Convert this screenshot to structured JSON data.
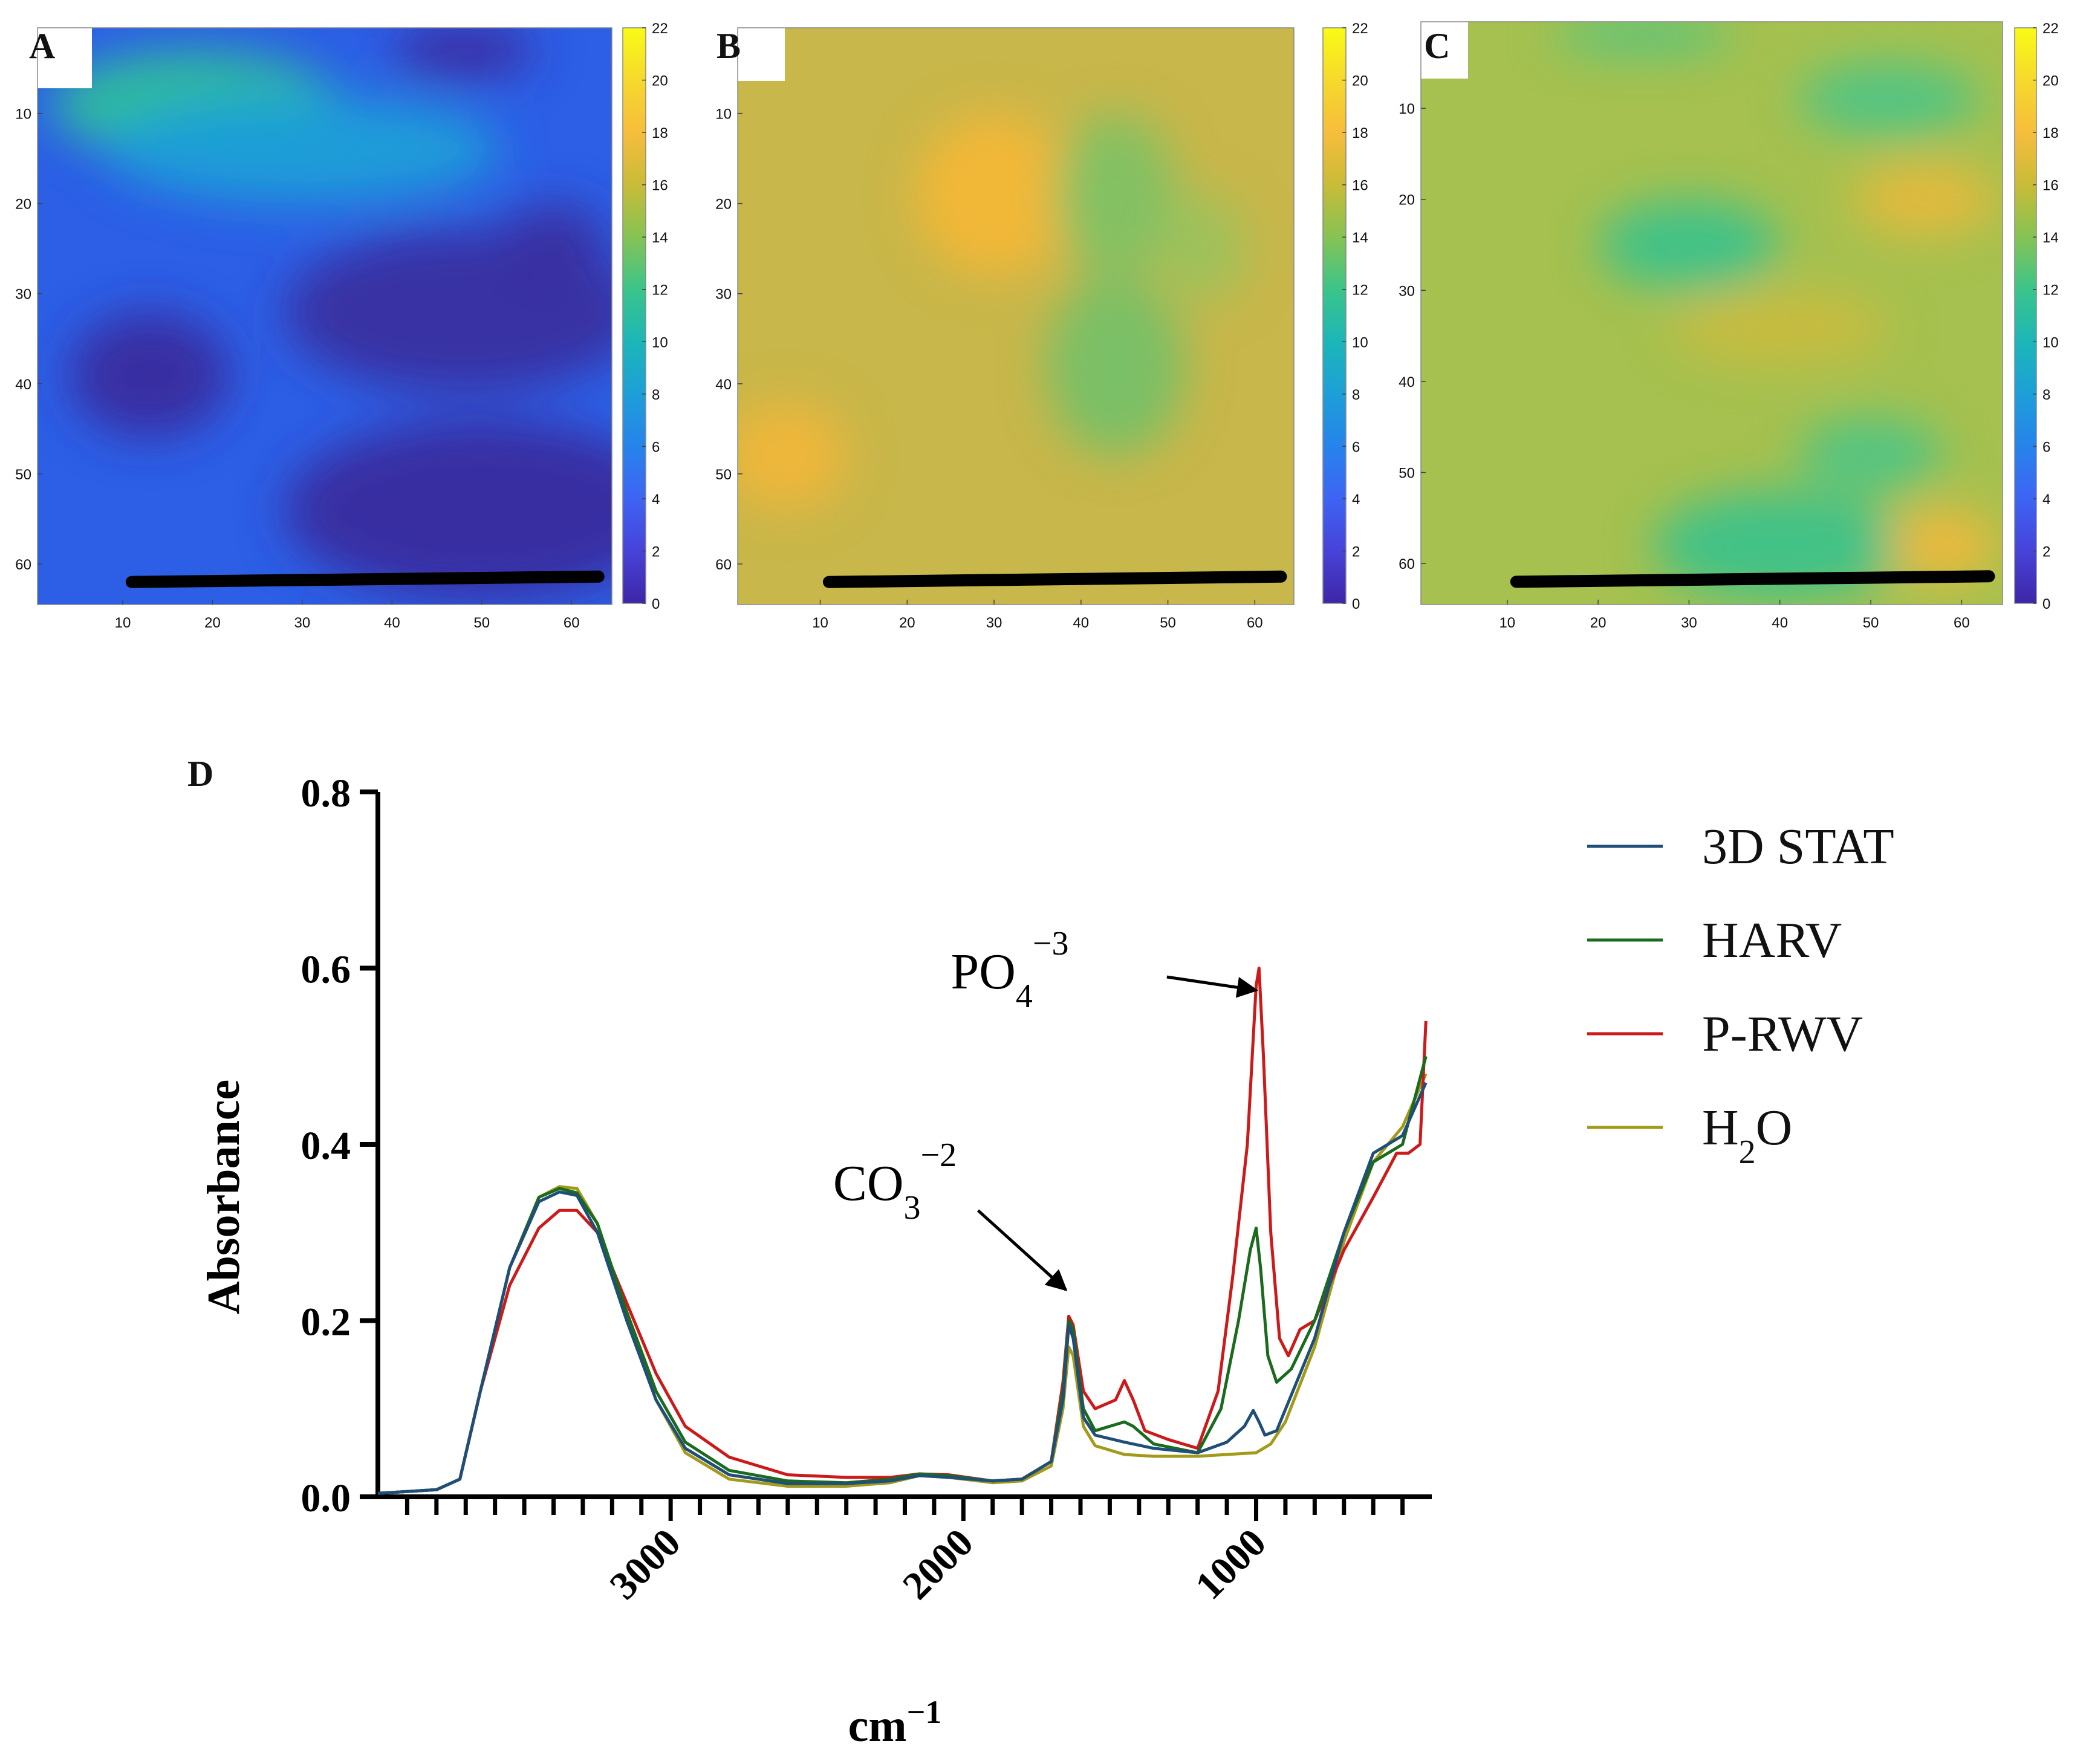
{
  "colorbar": {
    "ticks": [
      0,
      2,
      4,
      6,
      8,
      10,
      12,
      14,
      16,
      18,
      20,
      22
    ],
    "colors": [
      "#3e26a8",
      "#4743d9",
      "#3e64f4",
      "#2783ec",
      "#1d9fd8",
      "#1cb6b8",
      "#3bc48a",
      "#86c354",
      "#c9bb38",
      "#f7bd3c",
      "#f6d92d",
      "#f9fb15"
    ]
  },
  "heatmaps": [
    {
      "id": "A",
      "letter": "A",
      "base_color": "#2c5fe6",
      "x_ticks": [
        10,
        20,
        30,
        40,
        50,
        60
      ],
      "y_ticks": [
        10,
        20,
        30,
        40,
        50,
        60
      ],
      "blobs": [
        {
          "cx": 18,
          "cy": 9,
          "rx": 16,
          "ry": 6,
          "color": "#2ebf9a"
        },
        {
          "cx": 30,
          "cy": 14,
          "rx": 22,
          "ry": 6,
          "color": "#1d9fd8"
        },
        {
          "cx": 48,
          "cy": 3,
          "rx": 8,
          "ry": 3,
          "color": "#3b2b9f"
        },
        {
          "cx": 48,
          "cy": 32,
          "rx": 20,
          "ry": 9,
          "color": "#3a2fa0"
        },
        {
          "cx": 13,
          "cy": 39,
          "rx": 9,
          "ry": 7,
          "color": "#3a2a9e"
        },
        {
          "cx": 50,
          "cy": 54,
          "rx": 22,
          "ry": 10,
          "color": "#3a2a9e"
        },
        {
          "cx": 58,
          "cy": 24,
          "rx": 6,
          "ry": 4,
          "color": "#3a2fa0"
        }
      ],
      "scale_line": {
        "x1": 11,
        "y1": 62,
        "x2": 63,
        "y2": 61.4
      }
    },
    {
      "id": "B",
      "letter": "B",
      "base_color": "#c8b74a",
      "x_ticks": [
        10,
        20,
        30,
        40,
        50,
        60
      ],
      "y_ticks": [
        10,
        20,
        30,
        40,
        50,
        60
      ],
      "blobs": [
        {
          "cx": 30,
          "cy": 19,
          "rx": 9,
          "ry": 9,
          "color": "#f3b737"
        },
        {
          "cx": 6,
          "cy": 48,
          "rx": 7,
          "ry": 6,
          "color": "#f0b63a"
        },
        {
          "cx": 44,
          "cy": 19,
          "rx": 7,
          "ry": 9,
          "color": "#7fc164"
        },
        {
          "cx": 44,
          "cy": 38,
          "rx": 8,
          "ry": 10,
          "color": "#76c067"
        },
        {
          "cx": 54,
          "cy": 25,
          "rx": 5,
          "ry": 6,
          "color": "#9cc25c"
        }
      ],
      "scale_line": {
        "x1": 11,
        "y1": 62,
        "x2": 63,
        "y2": 61.4
      }
    },
    {
      "id": "C",
      "letter": "C",
      "base_color": "#a6c14f",
      "x_ticks": [
        10,
        20,
        30,
        40,
        50,
        60
      ],
      "y_ticks": [
        10,
        20,
        30,
        40,
        50,
        60
      ],
      "blobs": [
        {
          "cx": 30,
          "cy": 25,
          "rx": 10,
          "ry": 5,
          "color": "#3cc28a"
        },
        {
          "cx": 40,
          "cy": 34,
          "rx": 12,
          "ry": 4,
          "color": "#c9bc3f"
        },
        {
          "cx": 56,
          "cy": 20,
          "rx": 8,
          "ry": 4,
          "color": "#e6b93b"
        },
        {
          "cx": 52,
          "cy": 9,
          "rx": 10,
          "ry": 4,
          "color": "#4ec485"
        },
        {
          "cx": 40,
          "cy": 58,
          "rx": 14,
          "ry": 6,
          "color": "#3cc28a"
        },
        {
          "cx": 50,
          "cy": 48,
          "rx": 8,
          "ry": 4,
          "color": "#4ec485"
        },
        {
          "cx": 58,
          "cy": 58,
          "rx": 6,
          "ry": 4,
          "color": "#efb83b"
        },
        {
          "cx": 25,
          "cy": 2,
          "rx": 10,
          "ry": 2,
          "color": "#4ec485"
        }
      ],
      "scale_line": {
        "x1": 11,
        "y1": 62,
        "x2": 63,
        "y2": 61.4
      }
    }
  ],
  "chart_data": {
    "type": "line",
    "panel_letter": "D",
    "xlabel": "cm",
    "xlabel_sup": "−1",
    "ylabel": "Absorbance",
    "xlim": [
      4000,
      400
    ],
    "ylim": [
      0,
      0.8
    ],
    "x_ticks": [
      3000,
      2000,
      1000
    ],
    "y_ticks": [
      0.0,
      0.2,
      0.4,
      0.6,
      0.8
    ],
    "y_tick_labels": [
      "0.0",
      "0.2",
      "0.4",
      "0.6",
      "0.8"
    ],
    "legend_position": "right",
    "series": [
      {
        "name": "3D STAT",
        "color": "#1f4e79",
        "points": [
          [
            4000,
            0.004
          ],
          [
            3800,
            0.008
          ],
          [
            3720,
            0.02
          ],
          [
            3650,
            0.12
          ],
          [
            3550,
            0.26
          ],
          [
            3450,
            0.335
          ],
          [
            3380,
            0.346
          ],
          [
            3320,
            0.342
          ],
          [
            3250,
            0.3
          ],
          [
            3150,
            0.2
          ],
          [
            3050,
            0.11
          ],
          [
            2950,
            0.055
          ],
          [
            2800,
            0.025
          ],
          [
            2600,
            0.015
          ],
          [
            2400,
            0.015
          ],
          [
            2250,
            0.018
          ],
          [
            2150,
            0.024
          ],
          [
            2050,
            0.022
          ],
          [
            1900,
            0.018
          ],
          [
            1800,
            0.02
          ],
          [
            1700,
            0.04
          ],
          [
            1660,
            0.11
          ],
          [
            1640,
            0.195
          ],
          [
            1625,
            0.18
          ],
          [
            1590,
            0.09
          ],
          [
            1550,
            0.07
          ],
          [
            1450,
            0.062
          ],
          [
            1350,
            0.055
          ],
          [
            1200,
            0.05
          ],
          [
            1100,
            0.062
          ],
          [
            1040,
            0.08
          ],
          [
            1010,
            0.098
          ],
          [
            990,
            0.085
          ],
          [
            970,
            0.07
          ],
          [
            930,
            0.075
          ],
          [
            800,
            0.18
          ],
          [
            700,
            0.3
          ],
          [
            600,
            0.39
          ],
          [
            500,
            0.41
          ],
          [
            420,
            0.47
          ]
        ]
      },
      {
        "name": "HARV",
        "color": "#1a6b1e",
        "points": [
          [
            4000,
            0.004
          ],
          [
            3800,
            0.008
          ],
          [
            3720,
            0.02
          ],
          [
            3650,
            0.12
          ],
          [
            3550,
            0.26
          ],
          [
            3450,
            0.34
          ],
          [
            3380,
            0.35
          ],
          [
            3320,
            0.345
          ],
          [
            3250,
            0.31
          ],
          [
            3150,
            0.21
          ],
          [
            3050,
            0.12
          ],
          [
            2950,
            0.062
          ],
          [
            2800,
            0.03
          ],
          [
            2600,
            0.018
          ],
          [
            2400,
            0.016
          ],
          [
            2250,
            0.02
          ],
          [
            2150,
            0.026
          ],
          [
            2050,
            0.024
          ],
          [
            1900,
            0.018
          ],
          [
            1800,
            0.02
          ],
          [
            1700,
            0.04
          ],
          [
            1660,
            0.12
          ],
          [
            1640,
            0.2
          ],
          [
            1625,
            0.19
          ],
          [
            1590,
            0.1
          ],
          [
            1550,
            0.075
          ],
          [
            1450,
            0.085
          ],
          [
            1420,
            0.08
          ],
          [
            1350,
            0.06
          ],
          [
            1200,
            0.05
          ],
          [
            1120,
            0.1
          ],
          [
            1060,
            0.2
          ],
          [
            1020,
            0.28
          ],
          [
            1000,
            0.305
          ],
          [
            985,
            0.26
          ],
          [
            960,
            0.16
          ],
          [
            930,
            0.13
          ],
          [
            880,
            0.145
          ],
          [
            800,
            0.2
          ],
          [
            700,
            0.3
          ],
          [
            600,
            0.38
          ],
          [
            500,
            0.4
          ],
          [
            420,
            0.5
          ]
        ]
      },
      {
        "name": "P-RWV",
        "color": "#cc1a1a",
        "points": [
          [
            4000,
            0.004
          ],
          [
            3800,
            0.008
          ],
          [
            3720,
            0.02
          ],
          [
            3650,
            0.12
          ],
          [
            3550,
            0.24
          ],
          [
            3450,
            0.305
          ],
          [
            3380,
            0.325
          ],
          [
            3320,
            0.325
          ],
          [
            3250,
            0.3
          ],
          [
            3150,
            0.22
          ],
          [
            3050,
            0.14
          ],
          [
            2950,
            0.08
          ],
          [
            2800,
            0.045
          ],
          [
            2600,
            0.025
          ],
          [
            2400,
            0.022
          ],
          [
            2250,
            0.022
          ],
          [
            2150,
            0.026
          ],
          [
            2050,
            0.025
          ],
          [
            1900,
            0.018
          ],
          [
            1800,
            0.02
          ],
          [
            1700,
            0.04
          ],
          [
            1660,
            0.13
          ],
          [
            1640,
            0.205
          ],
          [
            1625,
            0.195
          ],
          [
            1590,
            0.12
          ],
          [
            1550,
            0.1
          ],
          [
            1480,
            0.11
          ],
          [
            1450,
            0.132
          ],
          [
            1420,
            0.11
          ],
          [
            1380,
            0.075
          ],
          [
            1300,
            0.065
          ],
          [
            1200,
            0.055
          ],
          [
            1130,
            0.12
          ],
          [
            1080,
            0.25
          ],
          [
            1030,
            0.4
          ],
          [
            1000,
            0.58
          ],
          [
            990,
            0.6
          ],
          [
            975,
            0.5
          ],
          [
            950,
            0.3
          ],
          [
            920,
            0.18
          ],
          [
            890,
            0.16
          ],
          [
            850,
            0.19
          ],
          [
            800,
            0.2
          ],
          [
            700,
            0.28
          ],
          [
            600,
            0.34
          ],
          [
            520,
            0.39
          ],
          [
            480,
            0.39
          ],
          [
            440,
            0.4
          ],
          [
            420,
            0.54
          ]
        ]
      },
      {
        "name": "H₂O",
        "name_main": "H",
        "name_sub": "2",
        "name_tail": "O",
        "color": "#a39a1a",
        "points": [
          [
            4000,
            0.004
          ],
          [
            3800,
            0.008
          ],
          [
            3720,
            0.02
          ],
          [
            3650,
            0.12
          ],
          [
            3550,
            0.26
          ],
          [
            3450,
            0.34
          ],
          [
            3380,
            0.352
          ],
          [
            3320,
            0.35
          ],
          [
            3250,
            0.31
          ],
          [
            3150,
            0.21
          ],
          [
            3050,
            0.11
          ],
          [
            2950,
            0.05
          ],
          [
            2800,
            0.02
          ],
          [
            2600,
            0.012
          ],
          [
            2400,
            0.012
          ],
          [
            2250,
            0.016
          ],
          [
            2150,
            0.024
          ],
          [
            2050,
            0.022
          ],
          [
            1900,
            0.016
          ],
          [
            1800,
            0.018
          ],
          [
            1700,
            0.035
          ],
          [
            1660,
            0.1
          ],
          [
            1640,
            0.17
          ],
          [
            1625,
            0.16
          ],
          [
            1590,
            0.08
          ],
          [
            1550,
            0.058
          ],
          [
            1450,
            0.048
          ],
          [
            1350,
            0.046
          ],
          [
            1200,
            0.046
          ],
          [
            1100,
            0.048
          ],
          [
            1000,
            0.05
          ],
          [
            950,
            0.06
          ],
          [
            900,
            0.085
          ],
          [
            800,
            0.17
          ],
          [
            700,
            0.29
          ],
          [
            600,
            0.38
          ],
          [
            500,
            0.42
          ],
          [
            420,
            0.48
          ]
        ]
      }
    ],
    "annotations": [
      {
        "id": "co3",
        "main": "CO",
        "sub": "3",
        "sup": "−2",
        "label_x": 1800,
        "label_y": 0.24,
        "arrow_from": [
          1950,
          0.325
        ],
        "arrow_to": [
          1650,
          0.235
        ]
      },
      {
        "id": "po4",
        "main": "PO",
        "sub": "4",
        "sup": "−3",
        "label_x": 1100,
        "label_y": 0.56,
        "arrow_from": [
          1305,
          0.59
        ],
        "arrow_to": [
          1000,
          0.575
        ]
      }
    ]
  }
}
